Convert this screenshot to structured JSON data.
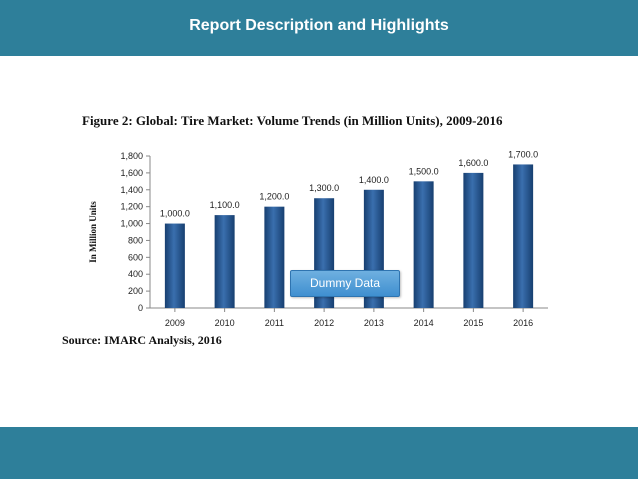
{
  "header": {
    "title": "Report Description and Highlights"
  },
  "colors": {
    "band": "#2e7f9a",
    "bar": "#1f4e86",
    "bar_light": "#3a6fae"
  },
  "figure": {
    "title": "Figure 2: Global: Tire Market: Volume Trends (in Million Units), 2009-2016",
    "source": "Source: IMARC Analysis, 2016",
    "watermark": "Dummy Data"
  },
  "chart_data": {
    "type": "bar",
    "title": "Figure 2: Global: Tire Market: Volume Trends (in Million Units), 2009-2016",
    "xlabel": "",
    "ylabel": "In Million Units",
    "categories": [
      "2009",
      "2010",
      "2011",
      "2012",
      "2013",
      "2014",
      "2015",
      "2016"
    ],
    "values": [
      1000,
      1100,
      1200,
      1300,
      1400,
      1500,
      1600,
      1700
    ],
    "value_labels": [
      "1,000.0",
      "1,100.0",
      "1,200.0",
      "1,300.0",
      "1,400.0",
      "1,500.0",
      "1,600.0",
      "1,700.0"
    ],
    "ylim": [
      0,
      1800
    ],
    "yticks": [
      0,
      200,
      400,
      600,
      800,
      1000,
      1200,
      1400,
      1600,
      1800
    ],
    "ytick_labels": [
      "0",
      "200",
      "400",
      "600",
      "800",
      "1,000",
      "1,200",
      "1,400",
      "1,600",
      "1,800"
    ],
    "grid": false,
    "legend": "none"
  }
}
